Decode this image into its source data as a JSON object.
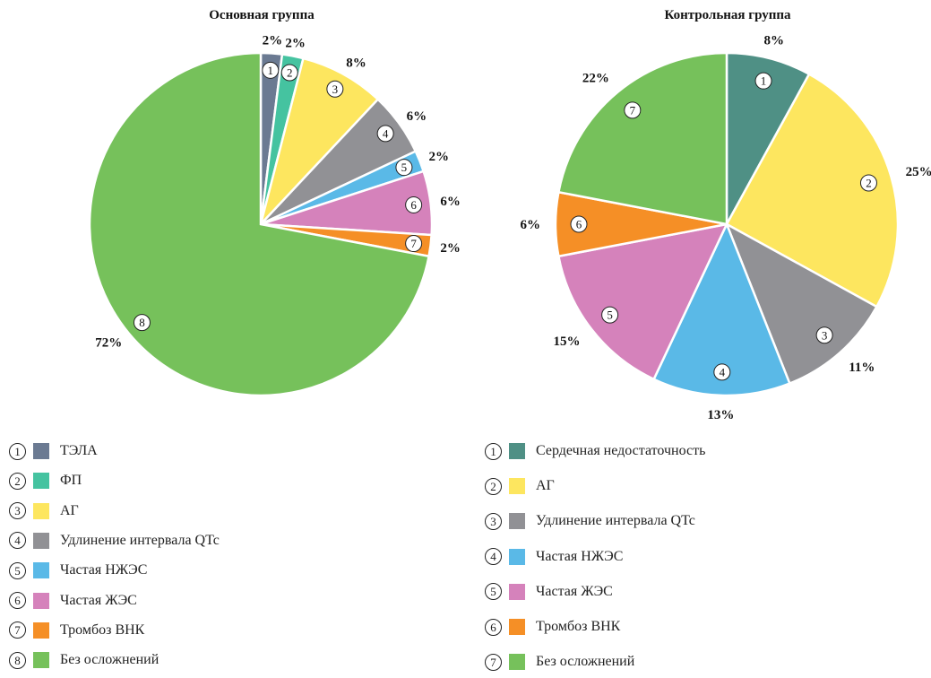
{
  "chart_data": [
    {
      "type": "pie",
      "title": "Основная группа",
      "slices": [
        {
          "num": "1",
          "label": "ТЭЛА",
          "value": 2,
          "value_label": "2%",
          "color": "#6b7a92"
        },
        {
          "num": "2",
          "label": "ФП",
          "value": 2,
          "value_label": "2%",
          "color": "#45c3a0"
        },
        {
          "num": "3",
          "label": "АГ",
          "value": 8,
          "value_label": "8%",
          "color": "#fde65f"
        },
        {
          "num": "4",
          "label": "Удлинение интервала QTc",
          "value": 6,
          "value_label": "6%",
          "color": "#919195"
        },
        {
          "num": "5",
          "label": "Частая НЖЭС",
          "value": 2,
          "value_label": "2%",
          "color": "#5ab9e7"
        },
        {
          "num": "6",
          "label": "Частая ЖЭС",
          "value": 6,
          "value_label": "6%",
          "color": "#d582bb"
        },
        {
          "num": "7",
          "label": "Тромбоз ВНК",
          "value": 2,
          "value_label": "2%",
          "color": "#f58f26"
        },
        {
          "num": "8",
          "label": "Без осложнений",
          "value": 72,
          "value_label": "72%",
          "color": "#76c15b"
        }
      ]
    },
    {
      "type": "pie",
      "title": "Контрольная группа",
      "slices": [
        {
          "num": "1",
          "label": "Сердечная недостаточность",
          "value": 8,
          "value_label": "8%",
          "color": "#4f9085"
        },
        {
          "num": "2",
          "label": "АГ",
          "value": 25,
          "value_label": "25%",
          "color": "#fde65f"
        },
        {
          "num": "3",
          "label": "Удлинение интервала QTc",
          "value": 11,
          "value_label": "11%",
          "color": "#919195"
        },
        {
          "num": "4",
          "label": "Частая НЖЭС",
          "value": 13,
          "value_label": "13%",
          "color": "#5ab9e7"
        },
        {
          "num": "5",
          "label": "Частая ЖЭС",
          "value": 15,
          "value_label": "15%",
          "color": "#d582bb"
        },
        {
          "num": "6",
          "label": "Тромбоз ВНК",
          "value": 6,
          "value_label": "6%",
          "color": "#f58f26"
        },
        {
          "num": "7",
          "label": "Без осложнений",
          "value": 22,
          "value_label": "22%",
          "color": "#76c15b"
        }
      ]
    }
  ]
}
